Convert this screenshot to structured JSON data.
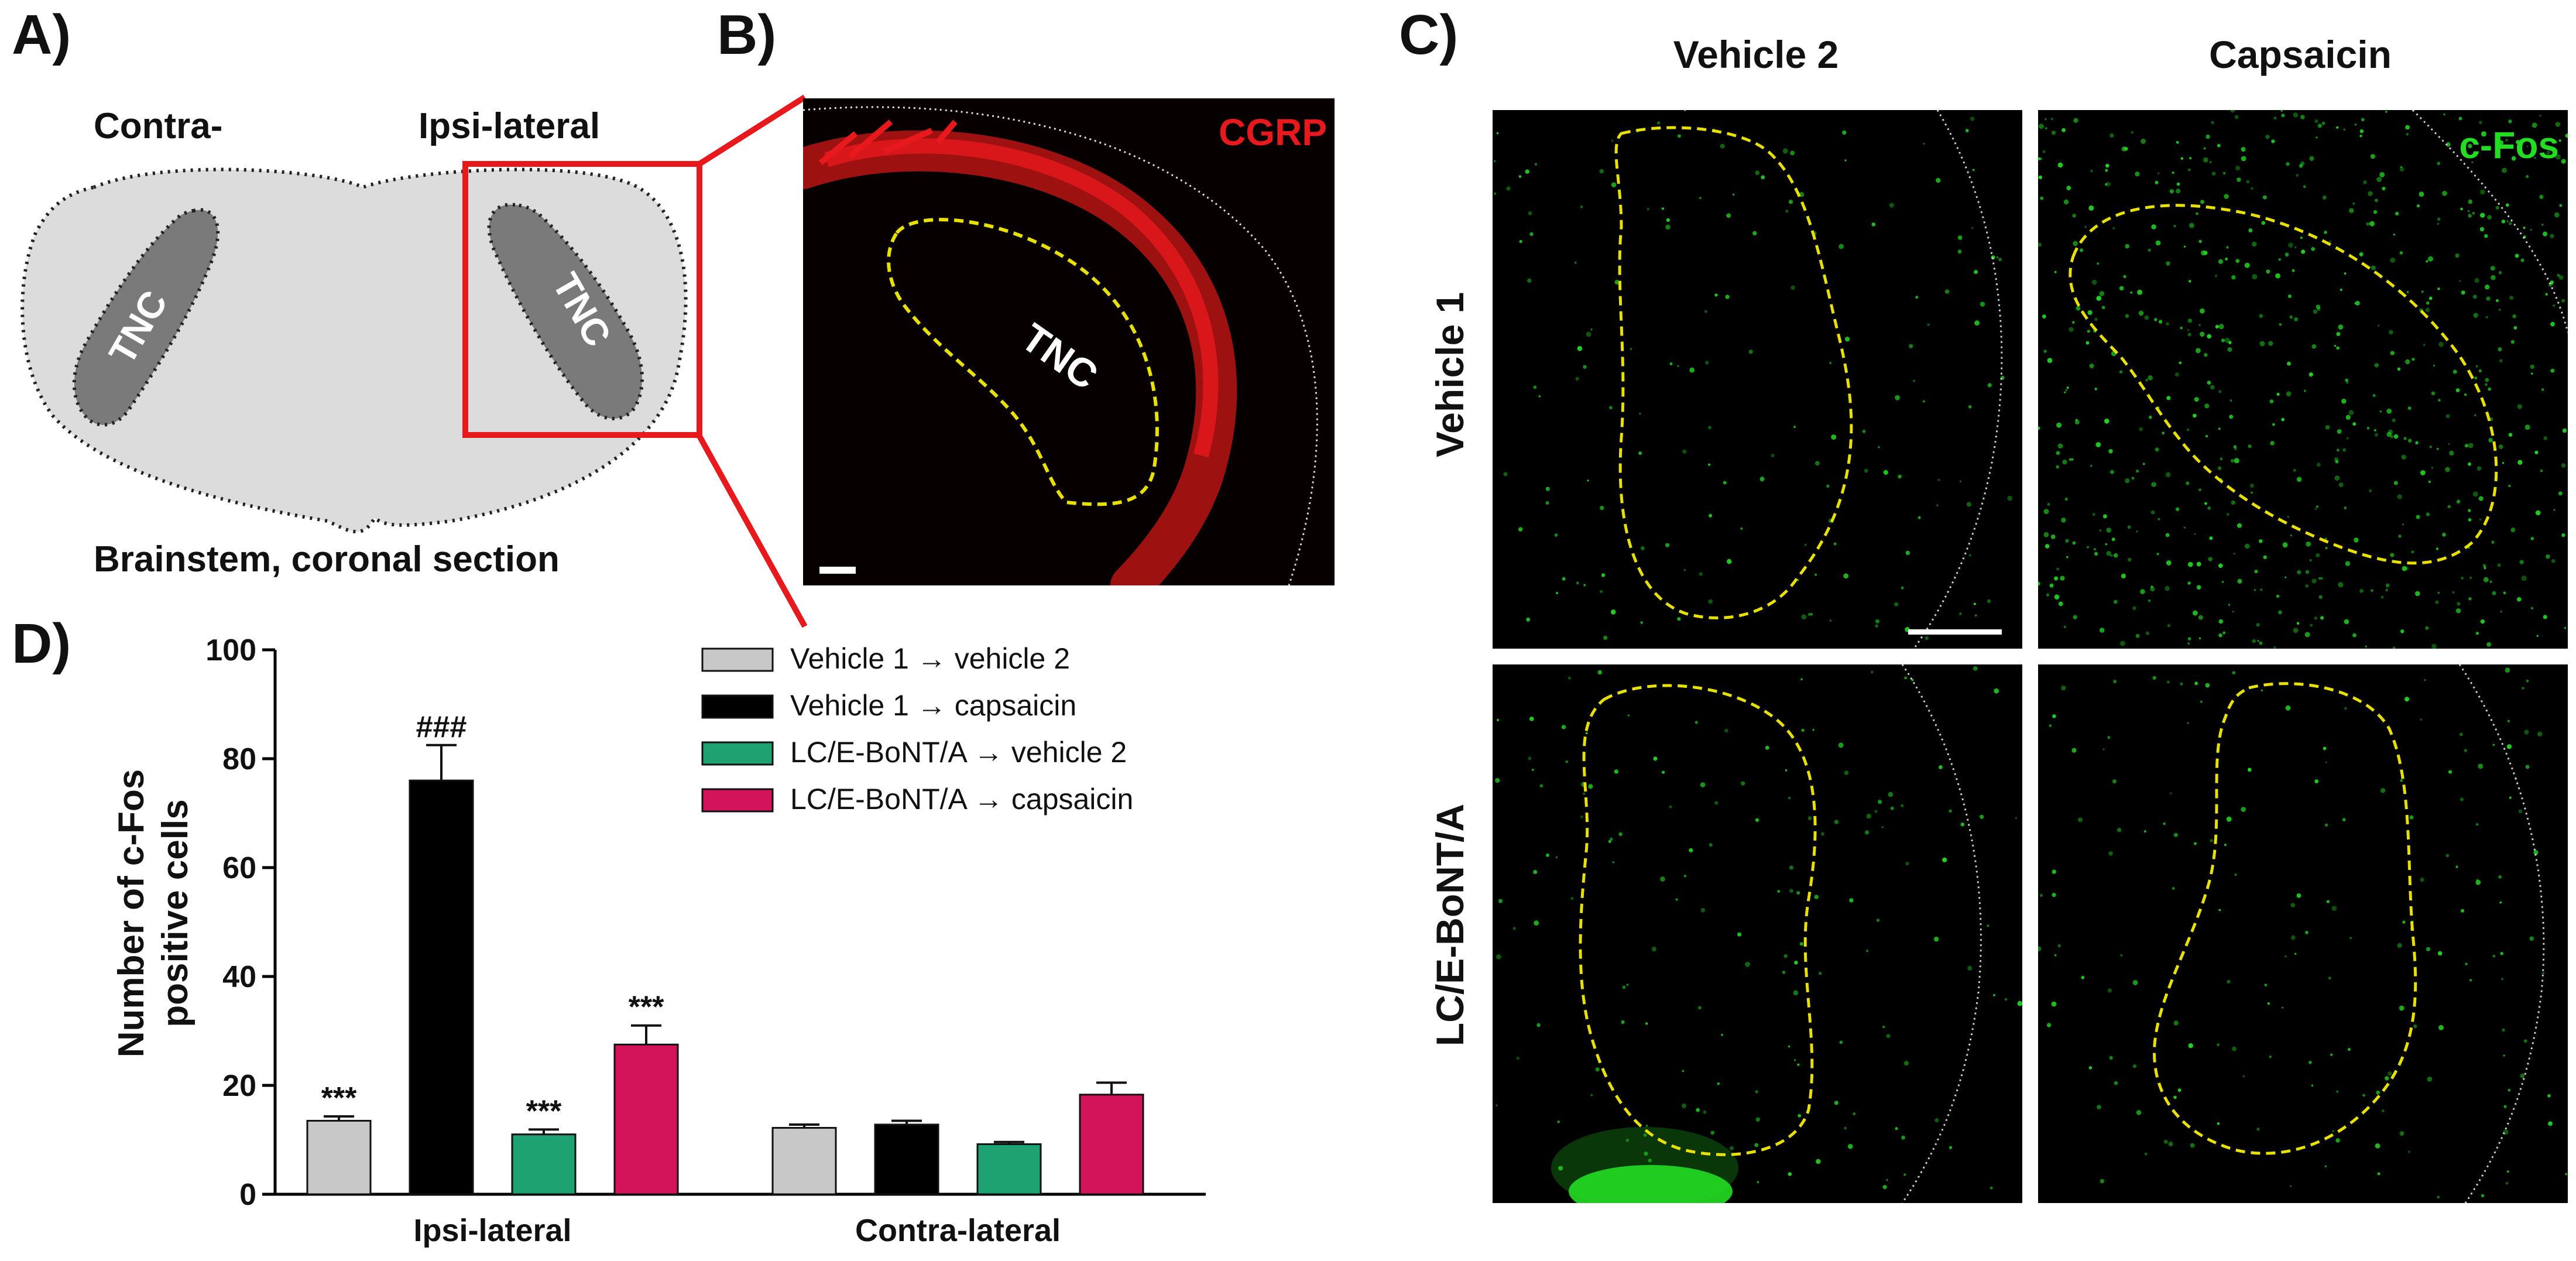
{
  "panel_labels": {
    "a": "A)",
    "b": "B)",
    "c": "C)",
    "d": "D)"
  },
  "panel_a": {
    "contra_label": "Contra-",
    "ipsi_label": "Ipsi-lateral",
    "region_label": "TNC",
    "caption": "Brainstem, coronal section",
    "colors": {
      "section": "#dcdcdc",
      "tnc": "#7a7a7a",
      "box": "#e8191d"
    }
  },
  "panel_b": {
    "stain_label": "CGRP",
    "region_label": "TNC",
    "colors": {
      "stain": "#e8191d",
      "outline": "#e8e000"
    }
  },
  "panel_c": {
    "col_headers": [
      "Vehicle 2",
      "Capsaicin"
    ],
    "row_headers": [
      "Vehicle 1",
      "LC/E-BoNT/A"
    ],
    "stain_label": "c-Fos",
    "colors": {
      "stain": "#22dd22",
      "outline": "#e8e000"
    }
  },
  "chart_data": {
    "type": "bar",
    "ylabel": "Number of c-Fos positive cells",
    "ylabel_lines": [
      "Number of c-Fos",
      "positive cells"
    ],
    "ylim": [
      0,
      100
    ],
    "yticks": [
      0,
      20,
      40,
      60,
      80,
      100
    ],
    "categories": [
      "Ipsi-lateral",
      "Contra-lateral"
    ],
    "series": [
      {
        "name": "Vehicle 1 → vehicle 2",
        "color": "#c8c8c8",
        "values": [
          13.5,
          12.2
        ],
        "errors": [
          0.8,
          0.6
        ],
        "annotations": [
          "***",
          ""
        ]
      },
      {
        "name": "Vehicle 1 → capsaicin",
        "color": "#000000",
        "values": [
          76,
          12.8
        ],
        "errors": [
          6.5,
          0.7
        ],
        "annotations": [
          "###",
          ""
        ]
      },
      {
        "name": "LC/E-BoNT/A → vehicle 2",
        "color": "#1ea272",
        "values": [
          11,
          9.2
        ],
        "errors": [
          0.9,
          0.4
        ],
        "annotations": [
          "***",
          ""
        ]
      },
      {
        "name": "LC/E-BoNT/A → capsaicin",
        "color": "#d4145a",
        "values": [
          27.5,
          18.3
        ],
        "errors": [
          3.5,
          2.2
        ],
        "annotations": [
          "***",
          ""
        ]
      }
    ]
  }
}
